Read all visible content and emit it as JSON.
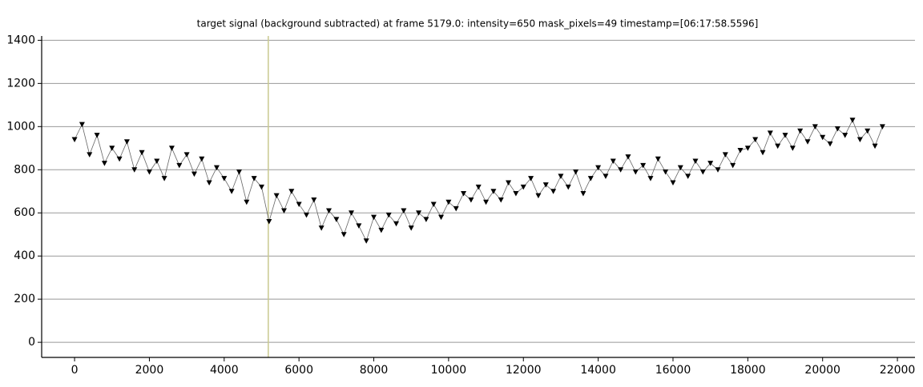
{
  "chart_data": {
    "type": "line",
    "title": "target signal (background subtracted) at frame 5179.0: intensity=650 mask_pixels=49 timestamp=[06:17:58.5596]",
    "current_frame": 5179,
    "cursor_color": "#c9c98f",
    "x": [
      0,
      200,
      400,
      600,
      800,
      1000,
      1200,
      1400,
      1600,
      1800,
      2000,
      2200,
      2400,
      2600,
      2800,
      3000,
      3200,
      3400,
      3600,
      3800,
      4000,
      4200,
      4400,
      4600,
      4800,
      5000,
      5200,
      5400,
      5600,
      5800,
      6000,
      6200,
      6400,
      6600,
      6800,
      7000,
      7200,
      7400,
      7600,
      7800,
      8000,
      8200,
      8400,
      8600,
      8800,
      9000,
      9200,
      9400,
      9600,
      9800,
      10000,
      10200,
      10400,
      10600,
      10800,
      11000,
      11200,
      11400,
      11600,
      11800,
      12000,
      12200,
      12400,
      12600,
      12800,
      13000,
      13200,
      13400,
      13600,
      13800,
      14000,
      14200,
      14400,
      14600,
      14800,
      15000,
      15200,
      15400,
      15600,
      15800,
      16000,
      16200,
      16400,
      16600,
      16800,
      17000,
      17200,
      17400,
      17600,
      17800,
      18000,
      18200,
      18400,
      18600,
      18800,
      19000,
      19200,
      19400,
      19600,
      19800,
      20000,
      20200,
      20400,
      20600,
      20800,
      21000,
      21200,
      21400,
      21600
    ],
    "series": [
      {
        "color": "#000000",
        "values": [
          940,
          1010,
          870,
          960,
          830,
          900,
          850,
          930,
          800,
          880,
          790,
          840,
          760,
          900,
          820,
          870,
          780,
          850,
          740,
          810,
          760,
          700,
          790,
          650,
          760,
          720,
          560,
          680,
          610,
          700,
          640,
          590,
          660,
          530,
          610,
          570,
          500,
          600,
          540,
          470,
          580,
          520,
          590,
          550,
          610,
          530,
          600,
          570,
          640,
          580,
          650,
          620,
          690,
          660,
          720,
          650,
          700,
          660,
          740,
          690,
          720,
          760,
          680,
          730,
          700,
          770,
          720,
          790,
          690,
          760,
          810,
          770,
          840,
          800,
          860,
          790,
          820,
          760,
          850,
          790,
          740,
          810,
          770,
          840,
          790,
          830,
          800,
          870,
          820,
          890,
          900,
          940,
          880,
          970,
          910,
          960,
          900,
          980,
          930,
          1000,
          950,
          920,
          990,
          960,
          1030,
          940,
          980,
          910,
          1000
        ]
      }
    ],
    "xlim": [
      -880,
      22470
    ],
    "ylim": [
      -70,
      1420
    ],
    "xticks": [
      0,
      2000,
      4000,
      6000,
      8000,
      10000,
      12000,
      14000,
      16000,
      18000,
      20000,
      22000
    ],
    "yticks": [
      0,
      200,
      400,
      600,
      800,
      1000,
      1200,
      1400
    ],
    "grid": true
  }
}
